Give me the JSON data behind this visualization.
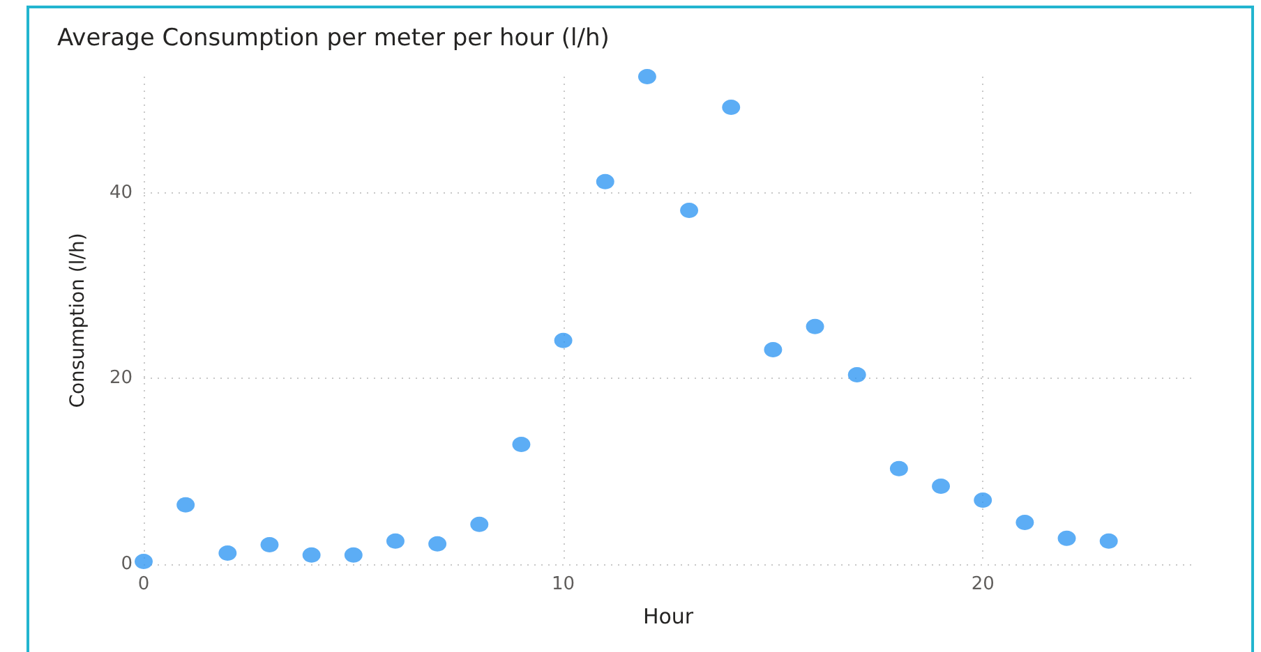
{
  "chart_data": {
    "type": "scatter",
    "title": "Average Consumption per meter per hour (l/h)",
    "xlabel": "Hour",
    "ylabel": "Consumption (l/h)",
    "x": [
      0,
      1,
      2,
      3,
      4,
      5,
      6,
      7,
      8,
      9,
      10,
      11,
      12,
      13,
      14,
      15,
      16,
      17,
      18,
      19,
      20,
      21,
      22,
      23
    ],
    "series": [
      {
        "color": "#3399f3",
        "values": [
          0.3,
          6.4,
          1.2,
          2.1,
          1.0,
          1.0,
          2.5,
          2.2,
          4.3,
          12.9,
          24.1,
          41.2,
          52.5,
          38.1,
          49.2,
          23.1,
          25.6,
          20.4,
          10.3,
          8.4,
          6.9,
          4.5,
          2.8,
          2.5
        ]
      }
    ],
    "xlim": [
      0,
      25
    ],
    "xticks": [
      0,
      10,
      20
    ],
    "ylim": [
      0,
      52.5
    ],
    "yticks": [
      0,
      20,
      40
    ],
    "grid": true,
    "marker": "circle"
  }
}
